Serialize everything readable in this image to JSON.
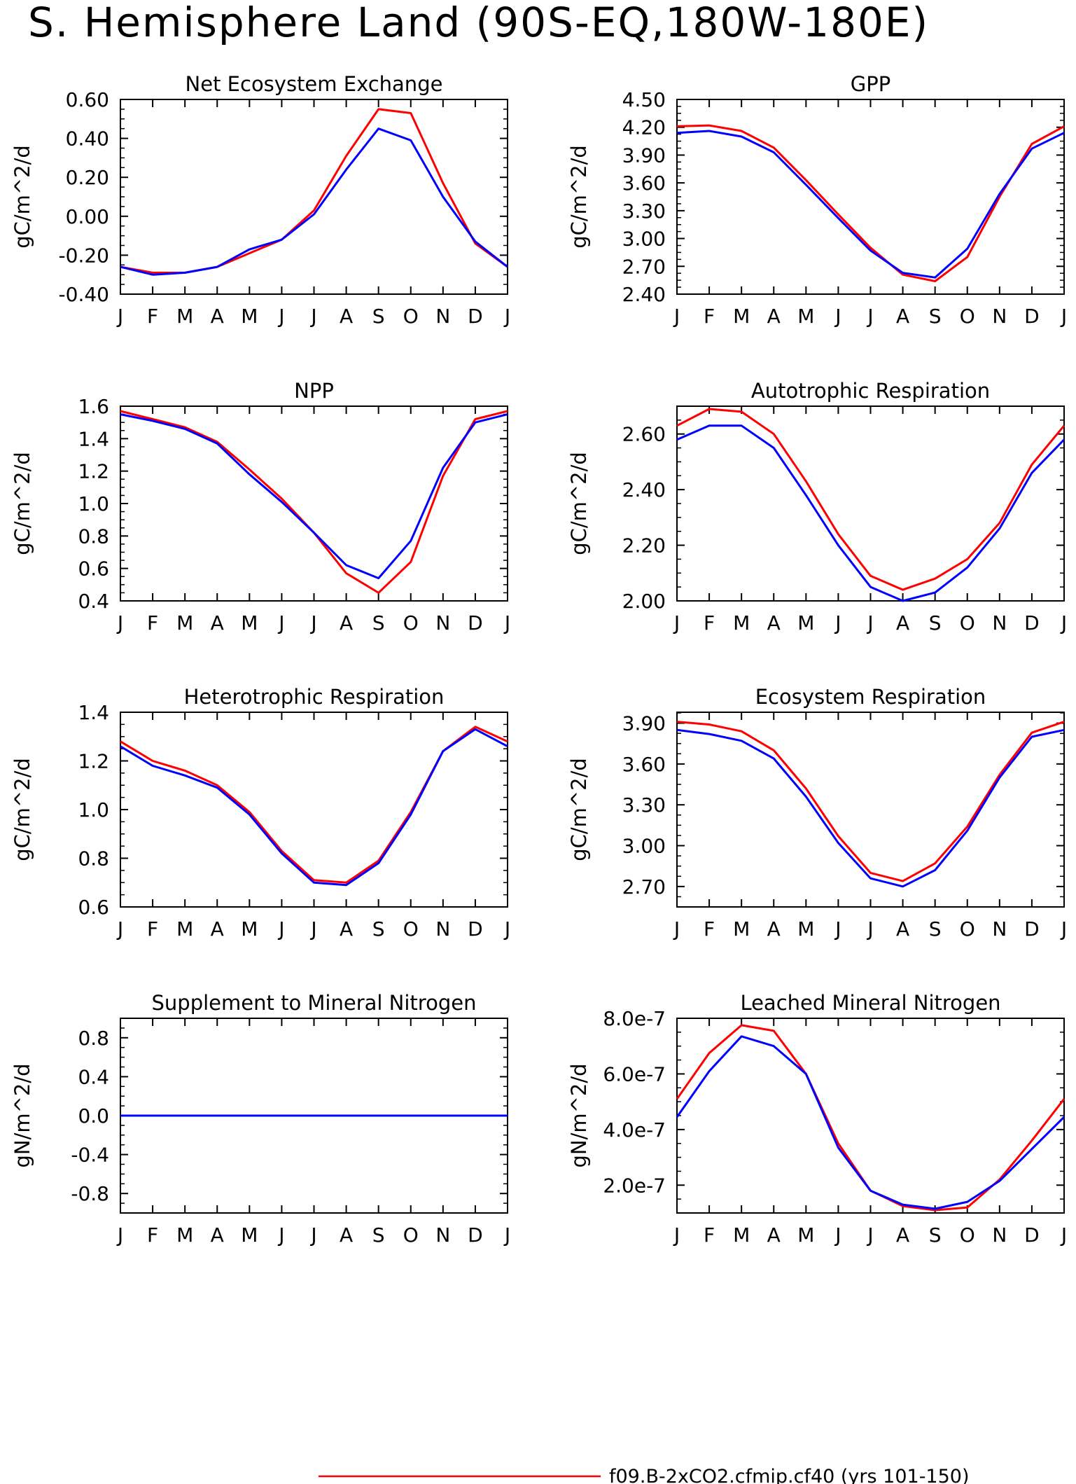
{
  "page_title": "S. Hemisphere Land (90S-EQ,180W-180E)",
  "months": [
    "J",
    "F",
    "M",
    "A",
    "M",
    "J",
    "J",
    "A",
    "S",
    "O",
    "N",
    "D",
    "J"
  ],
  "colors": {
    "series_a": "#ff0000",
    "series_b": "#0000ff",
    "axis": "#000000"
  },
  "legend": [
    {
      "label": "f09.B-2xCO2.cfmip.cf40 (yrs 101-150)",
      "color": "#ff0000"
    }
  ],
  "chart_data": [
    {
      "type": "line",
      "title": "Net Ecosystem Exchange",
      "ylabel": "gC/m^2/d",
      "ylim": [
        -0.4,
        0.6
      ],
      "yticks": [
        -0.4,
        -0.2,
        0.0,
        0.2,
        0.4,
        0.6
      ],
      "ytick_labels": [
        "-0.40",
        "-0.20",
        "0.00",
        "0.20",
        "0.40",
        "0.60"
      ],
      "series": [
        {
          "color": "#ff0000",
          "values": [
            -0.26,
            -0.29,
            -0.29,
            -0.26,
            -0.19,
            -0.12,
            0.03,
            0.31,
            0.55,
            0.53,
            0.17,
            -0.14,
            -0.26
          ]
        },
        {
          "color": "#0000ff",
          "values": [
            -0.26,
            -0.3,
            -0.29,
            -0.26,
            -0.17,
            -0.12,
            0.01,
            0.24,
            0.45,
            0.39,
            0.1,
            -0.13,
            -0.26
          ]
        }
      ]
    },
    {
      "type": "line",
      "title": "GPP",
      "ylabel": "gC/m^2/d",
      "ylim": [
        2.4,
        4.5
      ],
      "yticks": [
        2.4,
        2.7,
        3.0,
        3.3,
        3.6,
        3.9,
        4.2,
        4.5
      ],
      "ytick_labels": [
        "2.40",
        "2.70",
        "3.00",
        "3.30",
        "3.60",
        "3.90",
        "4.20",
        "4.50"
      ],
      "series": [
        {
          "color": "#ff0000",
          "values": [
            4.21,
            4.22,
            4.16,
            3.98,
            3.63,
            3.26,
            2.9,
            2.61,
            2.54,
            2.8,
            3.45,
            4.02,
            4.21
          ]
        },
        {
          "color": "#0000ff",
          "values": [
            4.14,
            4.16,
            4.1,
            3.93,
            3.58,
            3.22,
            2.87,
            2.63,
            2.58,
            2.89,
            3.48,
            3.97,
            4.14
          ]
        }
      ]
    },
    {
      "type": "line",
      "title": "NPP",
      "ylabel": "gC/m^2/d",
      "ylim": [
        0.4,
        1.6
      ],
      "yticks": [
        0.4,
        0.6,
        0.8,
        1.0,
        1.2,
        1.4,
        1.6
      ],
      "ytick_labels": [
        "0.4",
        "0.6",
        "0.8",
        "1.0",
        "1.2",
        "1.4",
        "1.6"
      ],
      "series": [
        {
          "color": "#ff0000",
          "values": [
            1.57,
            1.52,
            1.47,
            1.38,
            1.21,
            1.03,
            0.82,
            0.57,
            0.45,
            0.64,
            1.17,
            1.52,
            1.57
          ]
        },
        {
          "color": "#0000ff",
          "values": [
            1.55,
            1.51,
            1.46,
            1.37,
            1.18,
            1.01,
            0.82,
            0.62,
            0.54,
            0.77,
            1.22,
            1.5,
            1.55
          ]
        }
      ]
    },
    {
      "type": "line",
      "title": "Autotrophic Respiration",
      "ylabel": "gC/m^2/d",
      "ylim": [
        2.0,
        2.7
      ],
      "yticks": [
        2.0,
        2.2,
        2.4,
        2.6
      ],
      "ytick_labels": [
        "2.00",
        "2.20",
        "2.40",
        "2.60"
      ],
      "series": [
        {
          "color": "#ff0000",
          "values": [
            2.63,
            2.69,
            2.68,
            2.6,
            2.43,
            2.24,
            2.09,
            2.04,
            2.08,
            2.15,
            2.28,
            2.49,
            2.63
          ]
        },
        {
          "color": "#0000ff",
          "values": [
            2.58,
            2.63,
            2.63,
            2.55,
            2.38,
            2.2,
            2.05,
            2.0,
            2.03,
            2.12,
            2.26,
            2.46,
            2.58
          ]
        }
      ]
    },
    {
      "type": "line",
      "title": "Heterotrophic Respiration",
      "ylabel": "gC/m^2/d",
      "ylim": [
        0.6,
        1.4
      ],
      "yticks": [
        0.6,
        0.8,
        1.0,
        1.2,
        1.4
      ],
      "ytick_labels": [
        "0.6",
        "0.8",
        "1.0",
        "1.2",
        "1.4"
      ],
      "series": [
        {
          "color": "#ff0000",
          "values": [
            1.28,
            1.2,
            1.16,
            1.1,
            0.99,
            0.83,
            0.71,
            0.7,
            0.79,
            0.99,
            1.24,
            1.34,
            1.28
          ]
        },
        {
          "color": "#0000ff",
          "values": [
            1.26,
            1.18,
            1.14,
            1.09,
            0.98,
            0.82,
            0.7,
            0.69,
            0.78,
            0.98,
            1.24,
            1.33,
            1.26
          ]
        }
      ]
    },
    {
      "type": "line",
      "title": "Ecosystem Respiration",
      "ylabel": "gC/m^2/d",
      "ylim": [
        2.55,
        3.98
      ],
      "yticks": [
        2.7,
        3.0,
        3.3,
        3.6,
        3.9
      ],
      "ytick_labels": [
        "2.70",
        "3.00",
        "3.30",
        "3.60",
        "3.90"
      ],
      "series": [
        {
          "color": "#ff0000",
          "values": [
            3.91,
            3.89,
            3.84,
            3.7,
            3.42,
            3.07,
            2.8,
            2.74,
            2.87,
            3.14,
            3.52,
            3.83,
            3.91
          ]
        },
        {
          "color": "#0000ff",
          "values": [
            3.85,
            3.82,
            3.77,
            3.64,
            3.36,
            3.02,
            2.76,
            2.7,
            2.82,
            3.11,
            3.5,
            3.8,
            3.85
          ]
        }
      ]
    },
    {
      "type": "line",
      "title": "Supplement to Mineral Nitrogen",
      "ylabel": "gN/m^2/d",
      "ylim": [
        -1.0,
        1.0
      ],
      "yticks": [
        -0.8,
        -0.4,
        0.0,
        0.4,
        0.8
      ],
      "ytick_labels": [
        "-0.8",
        "-0.4",
        "0.0",
        "0.4",
        "0.8"
      ],
      "series": [
        {
          "color": "#ff0000",
          "values": [
            0,
            0,
            0,
            0,
            0,
            0,
            0,
            0,
            0,
            0,
            0,
            0,
            0
          ]
        },
        {
          "color": "#0000ff",
          "values": [
            0,
            0,
            0,
            0,
            0,
            0,
            0,
            0,
            0,
            0,
            0,
            0,
            0
          ]
        }
      ]
    },
    {
      "type": "line",
      "title": "Leached Mineral Nitrogen",
      "ylabel": "gN/m^2/d",
      "ylim": [
        1e-07,
        8e-07
      ],
      "yticks": [
        2e-07,
        4e-07,
        6e-07,
        8e-07
      ],
      "ytick_labels": [
        "2.0e-7",
        "4.0e-7",
        "6.0e-7",
        "8.0e-7"
      ],
      "series": [
        {
          "color": "#ff0000",
          "values": [
            5.1e-07,
            6.75e-07,
            7.75e-07,
            7.55e-07,
            6e-07,
            3.5e-07,
            1.8e-07,
            1.25e-07,
            1.1e-07,
            1.2e-07,
            2.2e-07,
            3.6e-07,
            5.1e-07
          ]
        },
        {
          "color": "#0000ff",
          "values": [
            4.45e-07,
            6.1e-07,
            7.35e-07,
            7e-07,
            6e-07,
            3.35e-07,
            1.8e-07,
            1.3e-07,
            1.15e-07,
            1.4e-07,
            2.15e-07,
            3.3e-07,
            4.45e-07
          ]
        }
      ]
    }
  ]
}
